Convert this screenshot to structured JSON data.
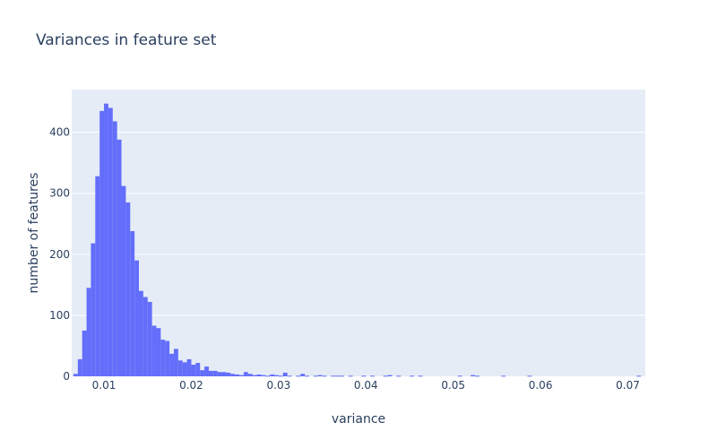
{
  "chart_data": {
    "type": "bar",
    "title": "Variances in feature set",
    "xlabel": "variance",
    "ylabel": "number of features",
    "xlim": [
      0.0063,
      0.072
    ],
    "ylim": [
      0,
      470
    ],
    "bin_width": 0.0005,
    "bin_start": 0.0065,
    "xticks": [
      0.01,
      0.02,
      0.03,
      0.04,
      0.05,
      0.06,
      0.07
    ],
    "xtick_labels": [
      "0.01",
      "0.02",
      "0.03",
      "0.04",
      "0.05",
      "0.06",
      "0.07"
    ],
    "yticks": [
      0,
      100,
      200,
      300,
      400
    ],
    "ytick_labels": [
      "0",
      "100",
      "200",
      "300",
      "400"
    ],
    "grid": true,
    "bar_color": "#636efa",
    "plot_bg": "#e5ecf6",
    "values": [
      4,
      28,
      75,
      145,
      218,
      328,
      435,
      447,
      440,
      418,
      388,
      312,
      285,
      238,
      190,
      140,
      130,
      122,
      83,
      79,
      60,
      58,
      37,
      45,
      26,
      23,
      28,
      19,
      22,
      10,
      16,
      9,
      9,
      7,
      7,
      6,
      4,
      3,
      2,
      7,
      4,
      2,
      3,
      2,
      1,
      3,
      2,
      1,
      6,
      1,
      0,
      1,
      4,
      1,
      0,
      1,
      2,
      1,
      0,
      1,
      1,
      1,
      0,
      1,
      0,
      0,
      1,
      0,
      1,
      0,
      0,
      1,
      2,
      0,
      1,
      0,
      0,
      1,
      0,
      1,
      0,
      0,
      0,
      0,
      0,
      0,
      0,
      0,
      1,
      0,
      0,
      2,
      1,
      0,
      0,
      0,
      0,
      0,
      1,
      0,
      0,
      0,
      0,
      0,
      1,
      0,
      0,
      0,
      0,
      0,
      0,
      0,
      0,
      0,
      0,
      0,
      0,
      0,
      0,
      0,
      0,
      0,
      0,
      0,
      0,
      0,
      0,
      0,
      0,
      1
    ]
  }
}
